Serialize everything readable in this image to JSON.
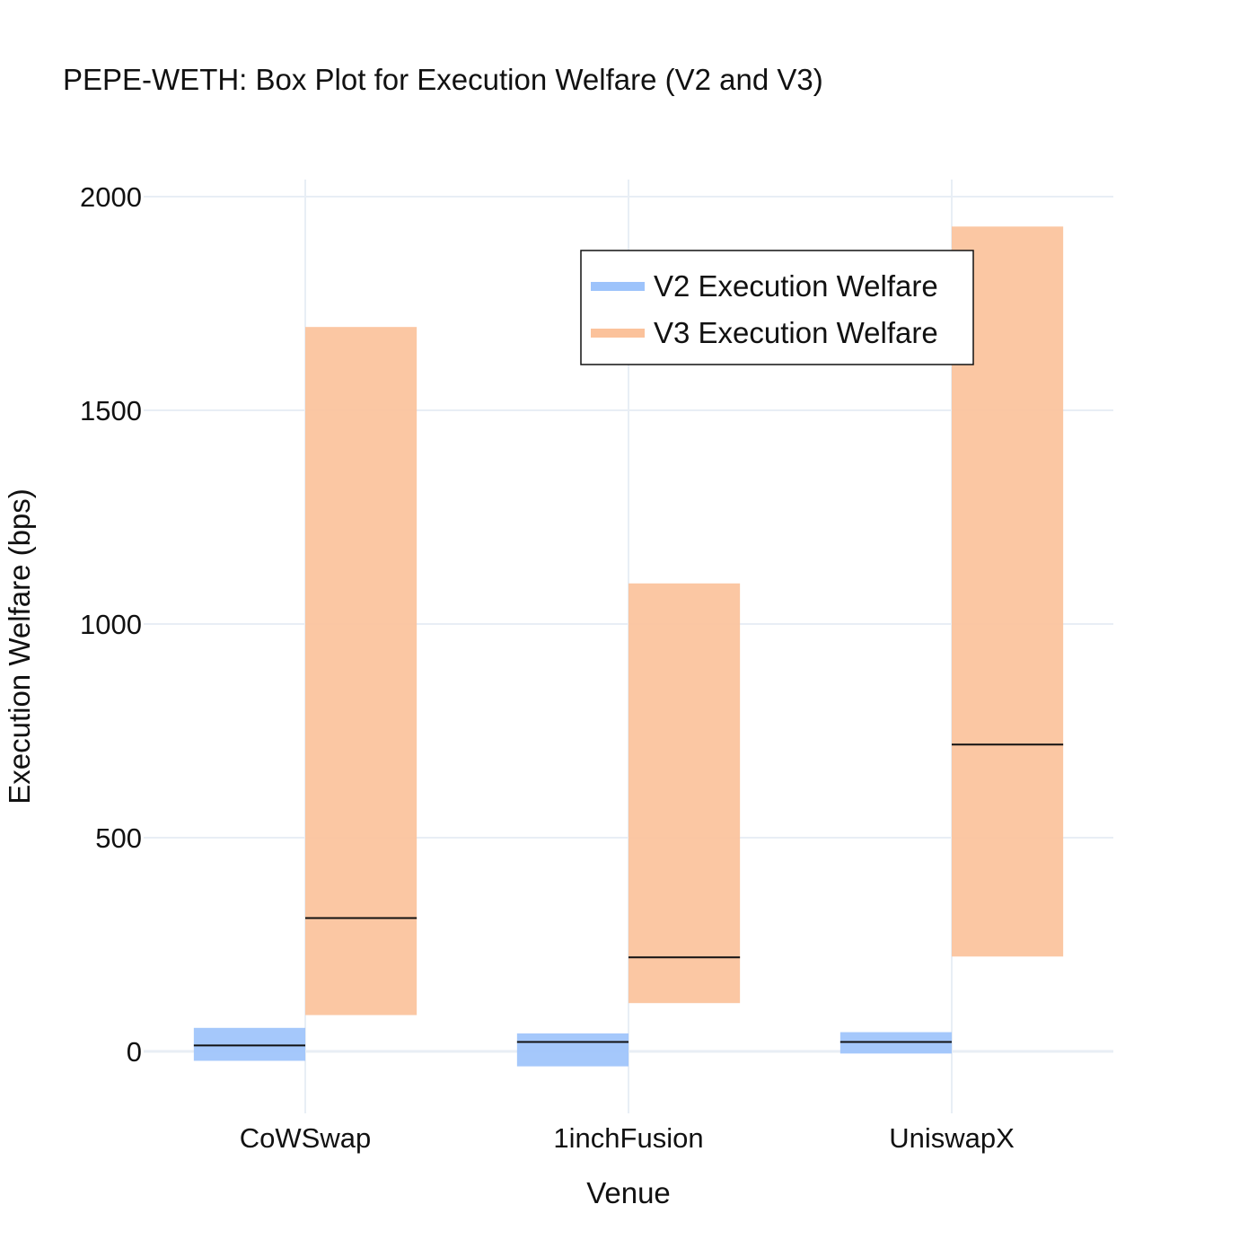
{
  "chart_data": {
    "type": "box",
    "title": "PEPE-WETH: Box Plot for Execution Welfare (V2 and V3)",
    "xlabel": "Venue",
    "ylabel": "Execution Welfare (bps)",
    "categories": [
      "CoWSwap",
      "1inchFusion",
      "UniswapX"
    ],
    "ylim": [
      -135,
      2040
    ],
    "yticks": [
      0,
      500,
      1000,
      1500,
      2000
    ],
    "grid": true,
    "legend_position": "top-right",
    "series": [
      {
        "name": "V2 Execution Welfare",
        "color": "#9DC3FB",
        "boxes": [
          {
            "q1": -22,
            "median": 14,
            "q3": 55
          },
          {
            "q1": -35,
            "median": 22,
            "q3": 42
          },
          {
            "q1": -5,
            "median": 22,
            "q3": 45
          }
        ]
      },
      {
        "name": "V3 Execution Welfare",
        "color": "#FBC29B",
        "boxes": [
          {
            "q1": 85,
            "median": 312,
            "q3": 1695
          },
          {
            "q1": 113,
            "median": 220,
            "q3": 1095
          },
          {
            "q1": 222,
            "median": 718,
            "q3": 1930
          }
        ]
      }
    ]
  }
}
